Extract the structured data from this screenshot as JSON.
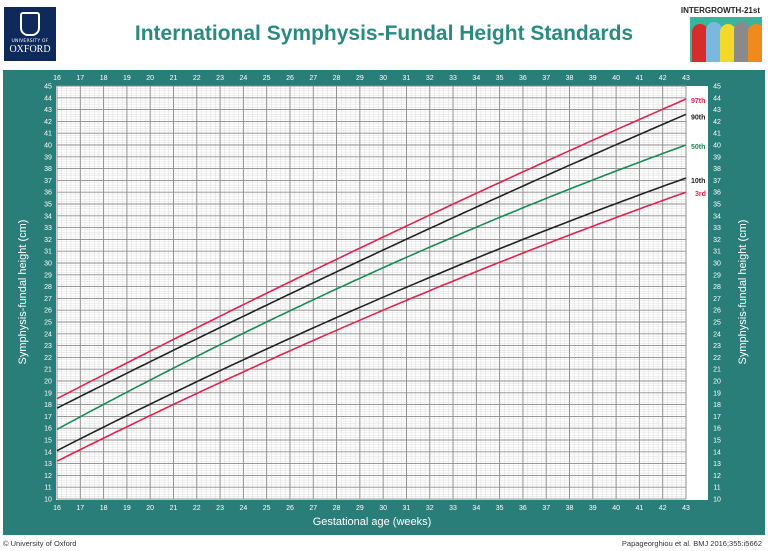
{
  "header": {
    "title": "International Symphysis-Fundal Height Standards",
    "left_logo": {
      "line1": "UNIVERSITY OF",
      "line2": "OXFORD"
    },
    "right_logo_label": "INTERGROWTH-21st"
  },
  "footer": {
    "left": "© University of Oxford",
    "right": "Papageorghiou et al. BMJ 2016;355:i5662"
  },
  "colors": {
    "panel": "#2a7e79",
    "title": "#2a8a80",
    "red": "#e0234e",
    "black": "#222222",
    "green": "#1a8a55"
  },
  "chart_data": {
    "type": "line",
    "title": "International Symphysis-Fundal Height Standards",
    "xlabel": "Gestational age (weeks)",
    "ylabel": "Symphysis-fundal height (cm)",
    "xlim": [
      16,
      43
    ],
    "ylim": [
      10,
      45
    ],
    "xticks": [
      16,
      17,
      18,
      19,
      20,
      21,
      22,
      23,
      24,
      25,
      26,
      27,
      28,
      29,
      30,
      31,
      32,
      33,
      34,
      35,
      36,
      37,
      38,
      39,
      40,
      41,
      42,
      43
    ],
    "yticks": [
      10,
      11,
      12,
      13,
      14,
      15,
      16,
      17,
      18,
      19,
      20,
      21,
      22,
      23,
      24,
      25,
      26,
      27,
      28,
      29,
      30,
      31,
      32,
      33,
      34,
      35,
      36,
      37,
      38,
      39,
      40,
      41,
      42,
      43,
      44,
      45
    ],
    "grid": true,
    "x": [
      16,
      30,
      43
    ],
    "series": [
      {
        "name": "97th",
        "color": "#e0234e",
        "values": [
          18.5,
          32.2,
          43.9
        ]
      },
      {
        "name": "90th",
        "color": "#222222",
        "values": [
          17.7,
          31.1,
          42.6
        ]
      },
      {
        "name": "50th",
        "color": "#1a8a55",
        "values": [
          15.9,
          29.6,
          40.0
        ]
      },
      {
        "name": "10th",
        "color": "#222222",
        "values": [
          14.1,
          27.1,
          37.2
        ]
      },
      {
        "name": "3rd",
        "color": "#e0234e",
        "values": [
          13.2,
          26.0,
          36.0
        ]
      }
    ]
  }
}
